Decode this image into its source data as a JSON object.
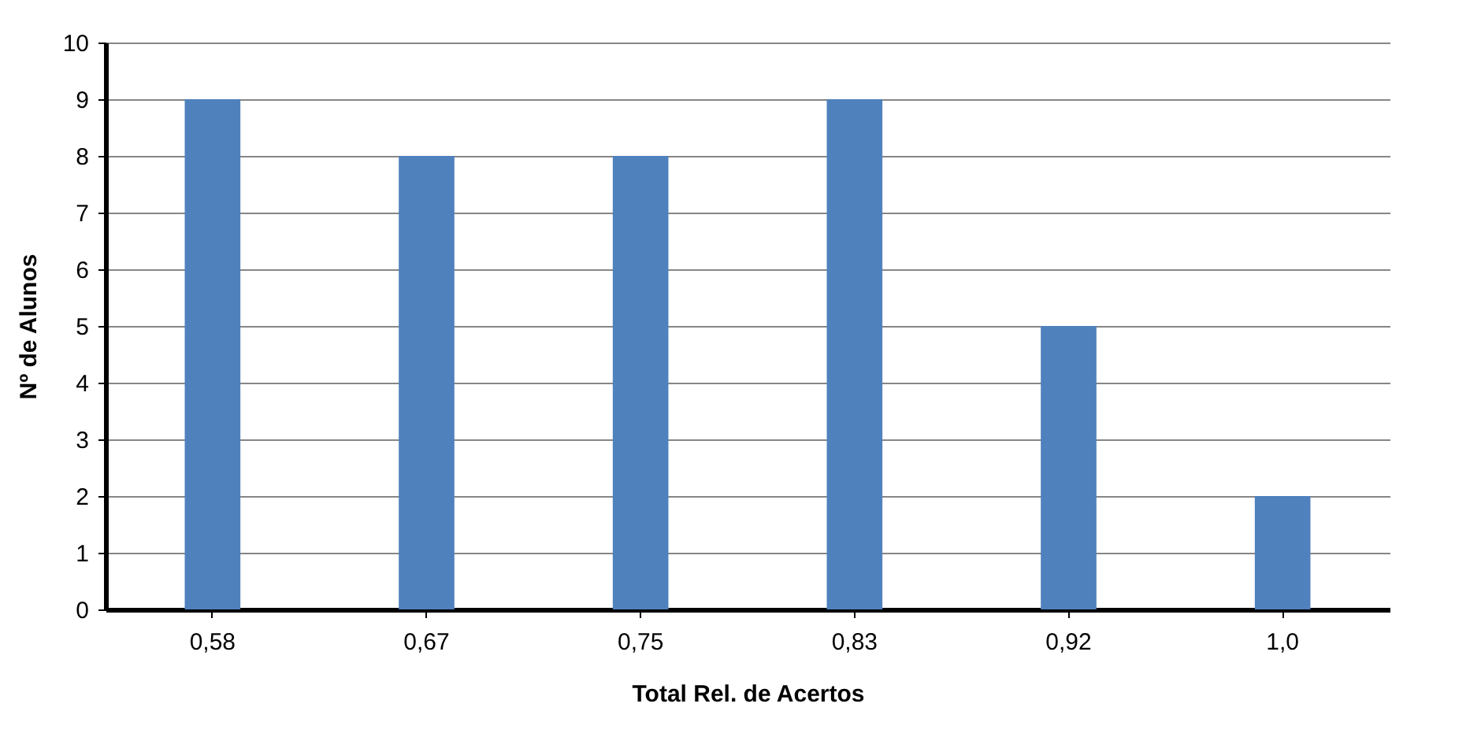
{
  "chart_data": {
    "type": "bar",
    "xlabel": "Total Rel. de Acertos",
    "ylabel": "Nº de Alunos",
    "categories": [
      "0,58",
      "0,67",
      "0,75",
      "0,83",
      "0,92",
      "1,0"
    ],
    "values": [
      9,
      8,
      8,
      9,
      5,
      2
    ],
    "color": "#4f81bd",
    "ylim": [
      0,
      10
    ],
    "yticks": [
      0,
      1,
      2,
      3,
      4,
      5,
      6,
      7,
      8,
      9,
      10
    ],
    "grid": "y"
  }
}
